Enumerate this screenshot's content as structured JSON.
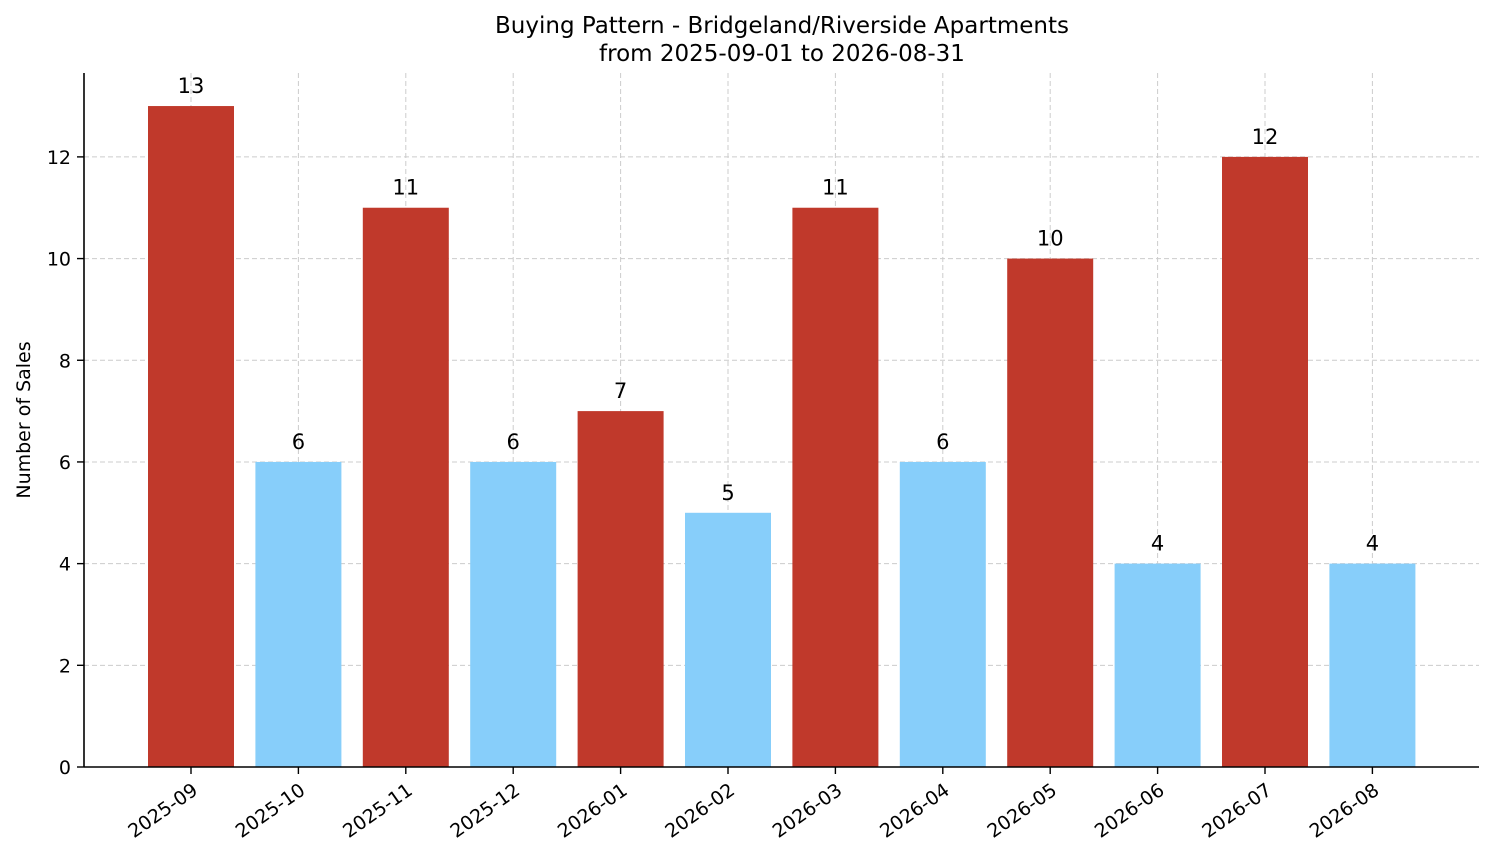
{
  "chart_data": {
    "type": "bar",
    "title": "Buying Pattern - Bridgeland/Riverside Apartments",
    "subtitle": "from 2025-09-01 to 2026-08-31",
    "xlabel": "",
    "ylabel": "Number of Sales",
    "categories": [
      "2025-09",
      "2025-10",
      "2025-11",
      "2025-12",
      "2026-01",
      "2026-02",
      "2026-03",
      "2026-04",
      "2026-05",
      "2026-06",
      "2026-07",
      "2026-08"
    ],
    "values": [
      13,
      6,
      11,
      6,
      7,
      5,
      11,
      6,
      10,
      4,
      12,
      4
    ],
    "bar_colors": [
      "#c0392b",
      "#87cefa",
      "#c0392b",
      "#87cefa",
      "#c0392b",
      "#87cefa",
      "#c0392b",
      "#87cefa",
      "#c0392b",
      "#87cefa",
      "#c0392b",
      "#87cefa"
    ],
    "ylim": [
      0,
      13.65
    ],
    "yticks": [
      0,
      2,
      4,
      6,
      8,
      10,
      12
    ],
    "grid": true,
    "data_labels": true
  }
}
